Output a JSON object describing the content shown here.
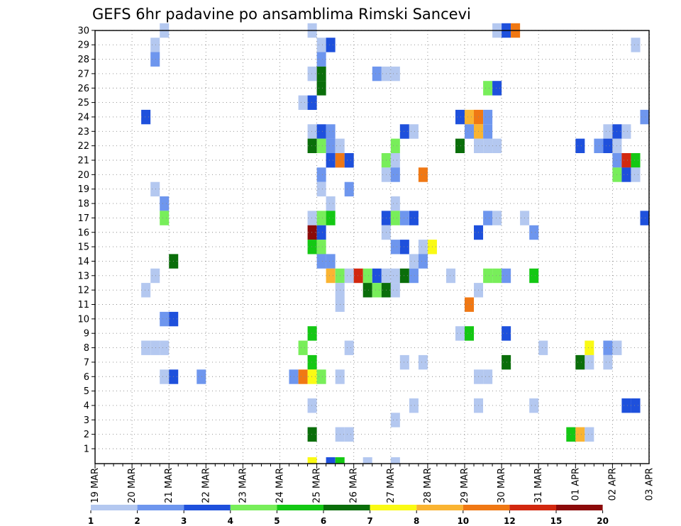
{
  "chart_data": {
    "type": "heatmap",
    "title": "GEFS 6hr padavine po ansamblima Rimski Sancevi",
    "xlabel": "",
    "ylabel": "",
    "x_ticks": [
      "19 MAR",
      "20 MAR",
      "21 MAR",
      "22 MAR",
      "23 MAR",
      "24 MAR",
      "25 MAR",
      "26 MAR",
      "27 MAR",
      "28 MAR",
      "29 MAR",
      "30 MAR",
      "31 MAR",
      "01 APR",
      "02 APR",
      "03 APR"
    ],
    "y_ticks": [
      1,
      2,
      3,
      4,
      5,
      6,
      7,
      8,
      9,
      10,
      11,
      12,
      13,
      14,
      15,
      16,
      17,
      18,
      19,
      20,
      21,
      22,
      23,
      24,
      25,
      26,
      27,
      28,
      29,
      30
    ],
    "time_step_hours": 6,
    "grid": true,
    "legend": {
      "placement": "bottom",
      "thresholds": [
        "1",
        "2",
        "3",
        "4",
        "5",
        "6",
        "7",
        "8",
        "10",
        "12",
        "15",
        "20"
      ],
      "colors": [
        "#b4c8f0",
        "#6e96ee",
        "#1e50dc",
        "#78ee5a",
        "#14c814",
        "#0a6e0a",
        "#fafa14",
        "#fab432",
        "#f07814",
        "#d2280f",
        "#8c0a0a"
      ]
    },
    "cells": [
      {
        "member": 30,
        "t": 7,
        "c": 0
      },
      {
        "member": 30,
        "t": 23,
        "c": 0
      },
      {
        "member": 30,
        "t": 43,
        "c": 0
      },
      {
        "member": 30,
        "t": 44,
        "c": 2
      },
      {
        "member": 30,
        "t": 45,
        "c": 8
      },
      {
        "member": 29,
        "t": 6,
        "c": 0
      },
      {
        "member": 29,
        "t": 24,
        "c": 0
      },
      {
        "member": 29,
        "t": 25,
        "c": 2
      },
      {
        "member": 29,
        "t": 58,
        "c": 0
      },
      {
        "member": 28,
        "t": 6,
        "c": 1
      },
      {
        "member": 28,
        "t": 24,
        "c": 1
      },
      {
        "member": 27,
        "t": 23,
        "c": 0
      },
      {
        "member": 27,
        "t": 24,
        "c": 5
      },
      {
        "member": 27,
        "t": 30,
        "c": 1
      },
      {
        "member": 27,
        "t": 31,
        "c": 0
      },
      {
        "member": 27,
        "t": 32,
        "c": 0
      },
      {
        "member": 26,
        "t": 24,
        "c": 5
      },
      {
        "member": 26,
        "t": 42,
        "c": 3
      },
      {
        "member": 26,
        "t": 43,
        "c": 2
      },
      {
        "member": 25,
        "t": 22,
        "c": 0
      },
      {
        "member": 25,
        "t": 23,
        "c": 2
      },
      {
        "member": 25,
        "t": 60,
        "c": 2
      },
      {
        "member": 24,
        "t": 5,
        "c": 2
      },
      {
        "member": 24,
        "t": 39,
        "c": 2
      },
      {
        "member": 24,
        "t": 40,
        "c": 7
      },
      {
        "member": 24,
        "t": 41,
        "c": 8
      },
      {
        "member": 24,
        "t": 42,
        "c": 1
      },
      {
        "member": 24,
        "t": 59,
        "c": 1
      },
      {
        "member": 23,
        "t": 23,
        "c": 0
      },
      {
        "member": 23,
        "t": 24,
        "c": 2
      },
      {
        "member": 23,
        "t": 25,
        "c": 1
      },
      {
        "member": 23,
        "t": 33,
        "c": 2
      },
      {
        "member": 23,
        "t": 34,
        "c": 0
      },
      {
        "member": 23,
        "t": 40,
        "c": 1
      },
      {
        "member": 23,
        "t": 41,
        "c": 7
      },
      {
        "member": 23,
        "t": 42,
        "c": 1
      },
      {
        "member": 23,
        "t": 55,
        "c": 0
      },
      {
        "member": 23,
        "t": 56,
        "c": 2
      },
      {
        "member": 23,
        "t": 57,
        "c": 0
      },
      {
        "member": 22,
        "t": 23,
        "c": 5
      },
      {
        "member": 22,
        "t": 24,
        "c": 3
      },
      {
        "member": 22,
        "t": 25,
        "c": 1
      },
      {
        "member": 22,
        "t": 26,
        "c": 0
      },
      {
        "member": 22,
        "t": 32,
        "c": 3
      },
      {
        "member": 22,
        "t": 39,
        "c": 5
      },
      {
        "member": 22,
        "t": 41,
        "c": 0
      },
      {
        "member": 22,
        "t": 42,
        "c": 0
      },
      {
        "member": 22,
        "t": 43,
        "c": 0
      },
      {
        "member": 22,
        "t": 52,
        "c": 2
      },
      {
        "member": 22,
        "t": 54,
        "c": 1
      },
      {
        "member": 22,
        "t": 55,
        "c": 2
      },
      {
        "member": 22,
        "t": 56,
        "c": 0
      },
      {
        "member": 22,
        "t": 60,
        "c": 1
      },
      {
        "member": 22,
        "t": 61,
        "c": 2
      },
      {
        "member": 21,
        "t": 25,
        "c": 2
      },
      {
        "member": 21,
        "t": 26,
        "c": 8
      },
      {
        "member": 21,
        "t": 27,
        "c": 2
      },
      {
        "member": 21,
        "t": 31,
        "c": 3
      },
      {
        "member": 21,
        "t": 32,
        "c": 0
      },
      {
        "member": 21,
        "t": 56,
        "c": 1
      },
      {
        "member": 21,
        "t": 57,
        "c": 9
      },
      {
        "member": 21,
        "t": 58,
        "c": 4
      },
      {
        "member": 20,
        "t": 24,
        "c": 1
      },
      {
        "member": 20,
        "t": 31,
        "c": 0
      },
      {
        "member": 20,
        "t": 32,
        "c": 1
      },
      {
        "member": 20,
        "t": 35,
        "c": 8
      },
      {
        "member": 20,
        "t": 56,
        "c": 3
      },
      {
        "member": 20,
        "t": 57,
        "c": 2
      },
      {
        "member": 20,
        "t": 58,
        "c": 0
      },
      {
        "member": 20,
        "t": 60,
        "c": 4
      },
      {
        "member": 19,
        "t": 6,
        "c": 0
      },
      {
        "member": 19,
        "t": 24,
        "c": 0
      },
      {
        "member": 19,
        "t": 27,
        "c": 1
      },
      {
        "member": 19,
        "t": 60,
        "c": 0
      },
      {
        "member": 19,
        "t": 61,
        "c": 3
      },
      {
        "member": 18,
        "t": 7,
        "c": 1
      },
      {
        "member": 18,
        "t": 25,
        "c": 0
      },
      {
        "member": 18,
        "t": 32,
        "c": 0
      },
      {
        "member": 17,
        "t": 7,
        "c": 3
      },
      {
        "member": 17,
        "t": 23,
        "c": 0
      },
      {
        "member": 17,
        "t": 24,
        "c": 3
      },
      {
        "member": 17,
        "t": 25,
        "c": 4
      },
      {
        "member": 17,
        "t": 31,
        "c": 2
      },
      {
        "member": 17,
        "t": 32,
        "c": 3
      },
      {
        "member": 17,
        "t": 33,
        "c": 1
      },
      {
        "member": 17,
        "t": 34,
        "c": 2
      },
      {
        "member": 17,
        "t": 42,
        "c": 1
      },
      {
        "member": 17,
        "t": 43,
        "c": 0
      },
      {
        "member": 17,
        "t": 46,
        "c": 0
      },
      {
        "member": 17,
        "t": 59,
        "c": 2
      },
      {
        "member": 17,
        "t": 60,
        "c": 0
      },
      {
        "member": 17,
        "t": 61,
        "c": 0
      },
      {
        "member": 16,
        "t": 23,
        "c": 10
      },
      {
        "member": 16,
        "t": 24,
        "c": 2
      },
      {
        "member": 16,
        "t": 31,
        "c": 0
      },
      {
        "member": 16,
        "t": 41,
        "c": 2
      },
      {
        "member": 16,
        "t": 47,
        "c": 1
      },
      {
        "member": 15,
        "t": 23,
        "c": 4
      },
      {
        "member": 15,
        "t": 24,
        "c": 3
      },
      {
        "member": 15,
        "t": 32,
        "c": 1
      },
      {
        "member": 15,
        "t": 33,
        "c": 2
      },
      {
        "member": 15,
        "t": 35,
        "c": 0
      },
      {
        "member": 15,
        "t": 36,
        "c": 6
      },
      {
        "member": 14,
        "t": 8,
        "c": 5
      },
      {
        "member": 14,
        "t": 24,
        "c": 1
      },
      {
        "member": 14,
        "t": 25,
        "c": 1
      },
      {
        "member": 14,
        "t": 34,
        "c": 0
      },
      {
        "member": 14,
        "t": 35,
        "c": 1
      },
      {
        "member": 13,
        "t": 6,
        "c": 0
      },
      {
        "member": 13,
        "t": 25,
        "c": 7
      },
      {
        "member": 13,
        "t": 26,
        "c": 3
      },
      {
        "member": 13,
        "t": 27,
        "c": 0
      },
      {
        "member": 13,
        "t": 28,
        "c": 9
      },
      {
        "member": 13,
        "t": 29,
        "c": 3
      },
      {
        "member": 13,
        "t": 30,
        "c": 2
      },
      {
        "member": 13,
        "t": 31,
        "c": 0
      },
      {
        "member": 13,
        "t": 32,
        "c": 0
      },
      {
        "member": 13,
        "t": 33,
        "c": 5
      },
      {
        "member": 13,
        "t": 34,
        "c": 1
      },
      {
        "member": 13,
        "t": 38,
        "c": 0
      },
      {
        "member": 13,
        "t": 42,
        "c": 3
      },
      {
        "member": 13,
        "t": 43,
        "c": 3
      },
      {
        "member": 13,
        "t": 44,
        "c": 1
      },
      {
        "member": 13,
        "t": 47,
        "c": 4
      },
      {
        "member": 12,
        "t": 5,
        "c": 0
      },
      {
        "member": 12,
        "t": 26,
        "c": 0
      },
      {
        "member": 12,
        "t": 29,
        "c": 5
      },
      {
        "member": 12,
        "t": 30,
        "c": 3
      },
      {
        "member": 12,
        "t": 31,
        "c": 5
      },
      {
        "member": 12,
        "t": 32,
        "c": 0
      },
      {
        "member": 12,
        "t": 41,
        "c": 0
      },
      {
        "member": 11,
        "t": 26,
        "c": 0
      },
      {
        "member": 11,
        "t": 40,
        "c": 8
      },
      {
        "member": 10,
        "t": 7,
        "c": 1
      },
      {
        "member": 10,
        "t": 8,
        "c": 2
      },
      {
        "member": 9,
        "t": 23,
        "c": 4
      },
      {
        "member": 9,
        "t": 39,
        "c": 0
      },
      {
        "member": 9,
        "t": 40,
        "c": 4
      },
      {
        "member": 9,
        "t": 44,
        "c": 2
      },
      {
        "member": 9,
        "t": 61,
        "c": 0
      },
      {
        "member": 8,
        "t": 5,
        "c": 0
      },
      {
        "member": 8,
        "t": 6,
        "c": 0
      },
      {
        "member": 8,
        "t": 7,
        "c": 0
      },
      {
        "member": 8,
        "t": 22,
        "c": 3
      },
      {
        "member": 8,
        "t": 27,
        "c": 0
      },
      {
        "member": 8,
        "t": 48,
        "c": 0
      },
      {
        "member": 8,
        "t": 53,
        "c": 6
      },
      {
        "member": 8,
        "t": 55,
        "c": 1
      },
      {
        "member": 8,
        "t": 56,
        "c": 0
      },
      {
        "member": 7,
        "t": 23,
        "c": 4
      },
      {
        "member": 7,
        "t": 33,
        "c": 0
      },
      {
        "member": 7,
        "t": 35,
        "c": 0
      },
      {
        "member": 7,
        "t": 44,
        "c": 5
      },
      {
        "member": 7,
        "t": 52,
        "c": 5
      },
      {
        "member": 7,
        "t": 53,
        "c": 0
      },
      {
        "member": 7,
        "t": 55,
        "c": 0
      },
      {
        "member": 6,
        "t": 7,
        "c": 0
      },
      {
        "member": 6,
        "t": 8,
        "c": 2
      },
      {
        "member": 6,
        "t": 11,
        "c": 1
      },
      {
        "member": 6,
        "t": 21,
        "c": 1
      },
      {
        "member": 6,
        "t": 22,
        "c": 8
      },
      {
        "member": 6,
        "t": 23,
        "c": 6
      },
      {
        "member": 6,
        "t": 24,
        "c": 3
      },
      {
        "member": 6,
        "t": 26,
        "c": 0
      },
      {
        "member": 6,
        "t": 41,
        "c": 0
      },
      {
        "member": 6,
        "t": 42,
        "c": 0
      },
      {
        "member": 4,
        "t": 23,
        "c": 0
      },
      {
        "member": 4,
        "t": 34,
        "c": 0
      },
      {
        "member": 4,
        "t": 41,
        "c": 0
      },
      {
        "member": 4,
        "t": 47,
        "c": 0
      },
      {
        "member": 4,
        "t": 57,
        "c": 2
      },
      {
        "member": 4,
        "t": 58,
        "c": 2
      },
      {
        "member": 3,
        "t": 32,
        "c": 0
      },
      {
        "member": 2,
        "t": 23,
        "c": 5
      },
      {
        "member": 2,
        "t": 26,
        "c": 0
      },
      {
        "member": 2,
        "t": 27,
        "c": 0
      },
      {
        "member": 2,
        "t": 51,
        "c": 4
      },
      {
        "member": 2,
        "t": 52,
        "c": 7
      },
      {
        "member": 2,
        "t": 53,
        "c": 0
      },
      {
        "member": 2,
        "t": 60,
        "c": 0
      },
      {
        "member": 2,
        "t": 61,
        "c": 2
      }
    ],
    "partial_row_cells": [
      {
        "t": 23,
        "c": 6
      },
      {
        "t": 25,
        "c": 2
      },
      {
        "t": 26,
        "c": 4
      },
      {
        "t": 29,
        "c": 0
      },
      {
        "t": 32,
        "c": 0
      }
    ]
  }
}
